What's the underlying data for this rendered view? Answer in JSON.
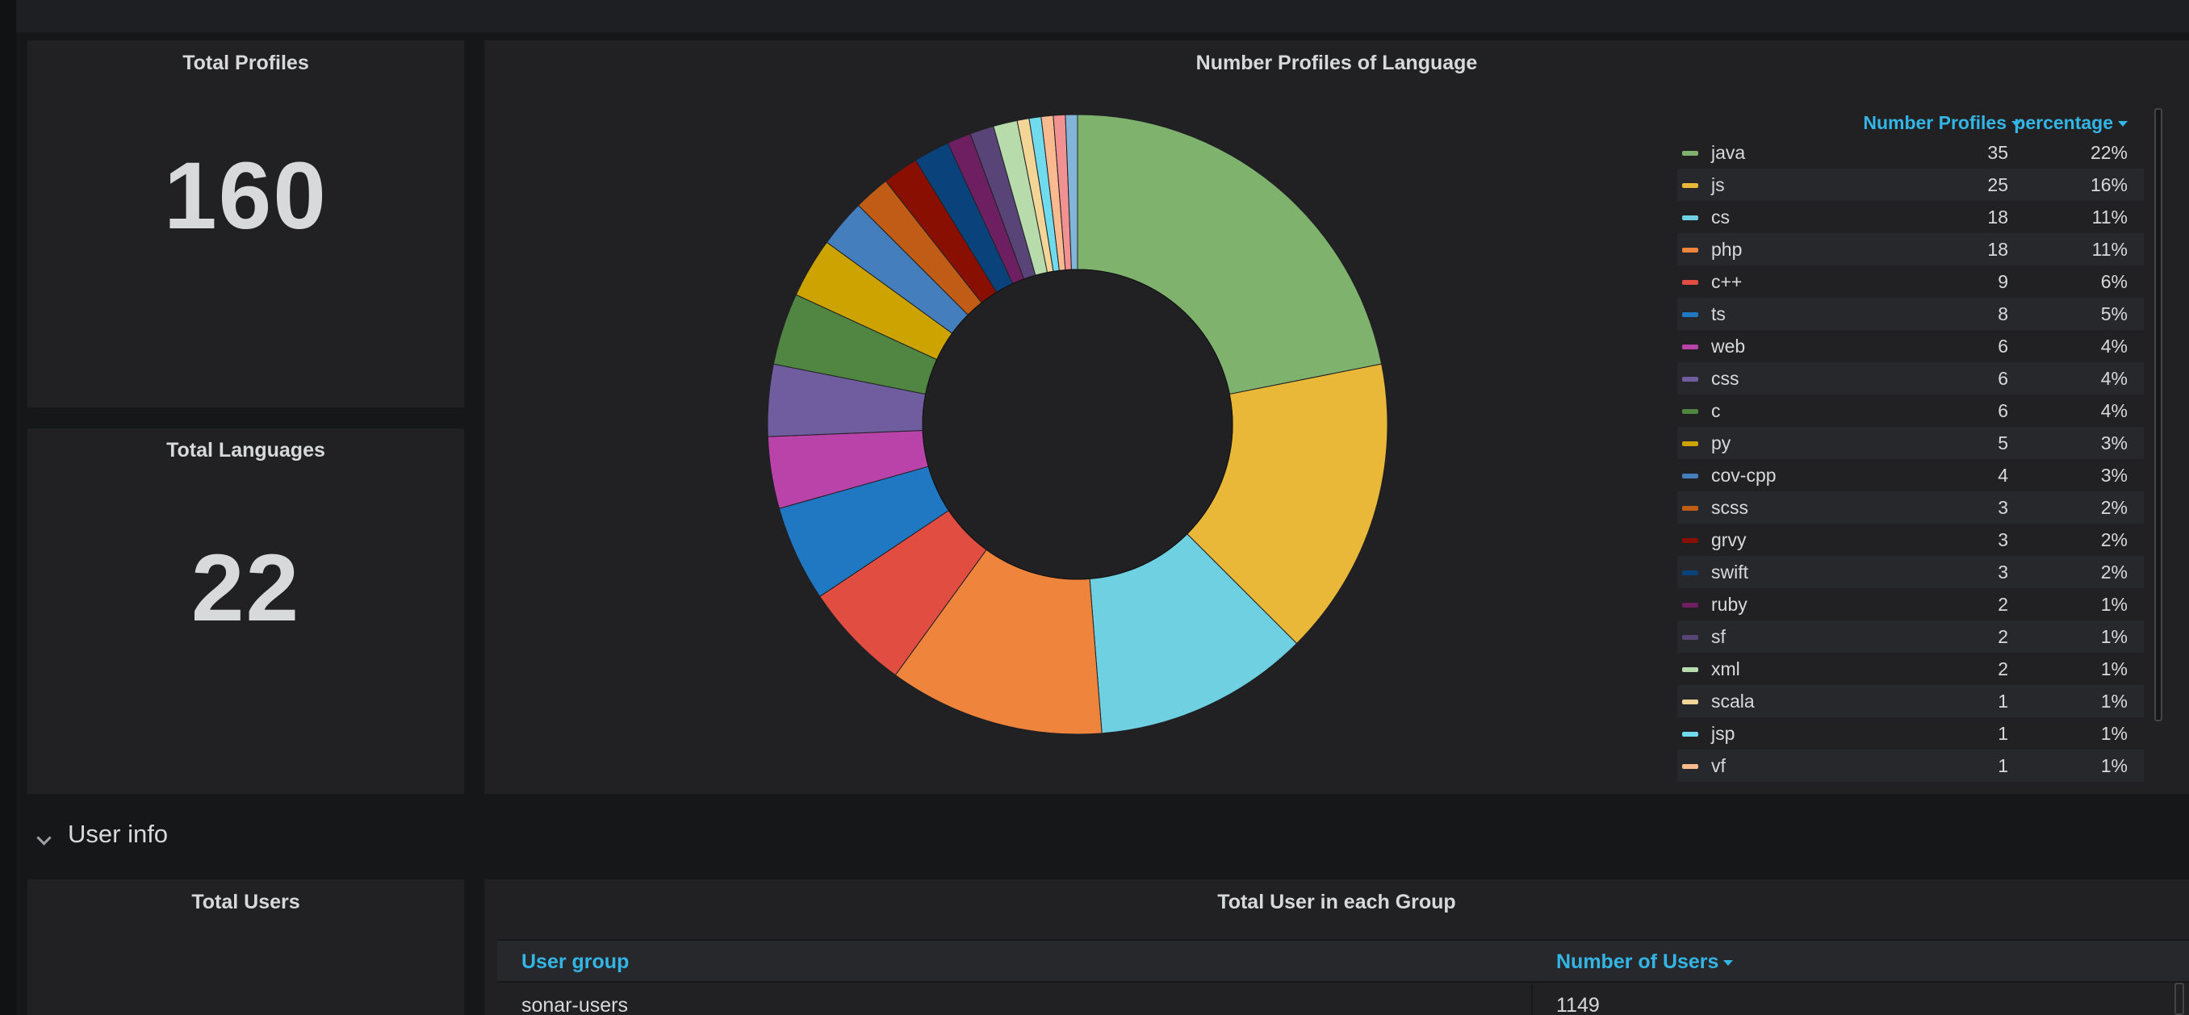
{
  "panels": {
    "total_profiles": {
      "title": "Total Profiles",
      "value": "160"
    },
    "total_languages": {
      "title": "Total Languages",
      "value": "22"
    },
    "pie": {
      "title": "Number Profiles of Language",
      "legend_headers": {
        "count": "Number Profiles",
        "percentage": "percentage"
      }
    },
    "total_users": {
      "title": "Total Users"
    },
    "user_groups": {
      "title": "Total User in each Group",
      "headers": {
        "group": "User group",
        "count": "Number of Users"
      },
      "rows": [
        {
          "group": "sonar-users",
          "count": "1149"
        }
      ]
    }
  },
  "row": {
    "title": "User info"
  },
  "colors": {
    "accent": "#33b5e5",
    "panel_bg": "#212124",
    "page_bg": "#161719"
  },
  "chart_data": {
    "type": "pie",
    "donut": true,
    "title": "Number Profiles of Language",
    "legend_placement": "right",
    "series_items": [
      {
        "name": "java",
        "value": 35,
        "percentage": "22%",
        "color": "#7eb26d"
      },
      {
        "name": "js",
        "value": 25,
        "percentage": "16%",
        "color": "#eab839"
      },
      {
        "name": "cs",
        "value": 18,
        "percentage": "11%",
        "color": "#6ed0e0"
      },
      {
        "name": "php",
        "value": 18,
        "percentage": "11%",
        "color": "#ef843c"
      },
      {
        "name": "c++",
        "value": 9,
        "percentage": "6%",
        "color": "#e24d42"
      },
      {
        "name": "ts",
        "value": 8,
        "percentage": "5%",
        "color": "#1f78c1"
      },
      {
        "name": "web",
        "value": 6,
        "percentage": "4%",
        "color": "#ba43a9"
      },
      {
        "name": "css",
        "value": 6,
        "percentage": "4%",
        "color": "#705da0"
      },
      {
        "name": "c",
        "value": 6,
        "percentage": "4%",
        "color": "#508642"
      },
      {
        "name": "py",
        "value": 5,
        "percentage": "3%",
        "color": "#cca300"
      },
      {
        "name": "cov-cpp",
        "value": 4,
        "percentage": "3%",
        "color": "#447ebc"
      },
      {
        "name": "scss",
        "value": 3,
        "percentage": "2%",
        "color": "#c15c17"
      },
      {
        "name": "grvy",
        "value": 3,
        "percentage": "2%",
        "color": "#890f02"
      },
      {
        "name": "swift",
        "value": 3,
        "percentage": "2%",
        "color": "#0a437c"
      },
      {
        "name": "ruby",
        "value": 2,
        "percentage": "1%",
        "color": "#6d1f62"
      },
      {
        "name": "sf",
        "value": 2,
        "percentage": "1%",
        "color": "#584477"
      },
      {
        "name": "xml",
        "value": 2,
        "percentage": "1%",
        "color": "#b7dbab"
      },
      {
        "name": "scala",
        "value": 1,
        "percentage": "1%",
        "color": "#f4d598"
      },
      {
        "name": "jsp",
        "value": 1,
        "percentage": "1%",
        "color": "#70dbed"
      },
      {
        "name": "vf",
        "value": 1,
        "percentage": "1%",
        "color": "#f9ba8f"
      }
    ],
    "hidden_slices": [
      {
        "value": 1,
        "color": "#f29191"
      },
      {
        "value": 1,
        "color": "#82b5d8"
      }
    ]
  }
}
